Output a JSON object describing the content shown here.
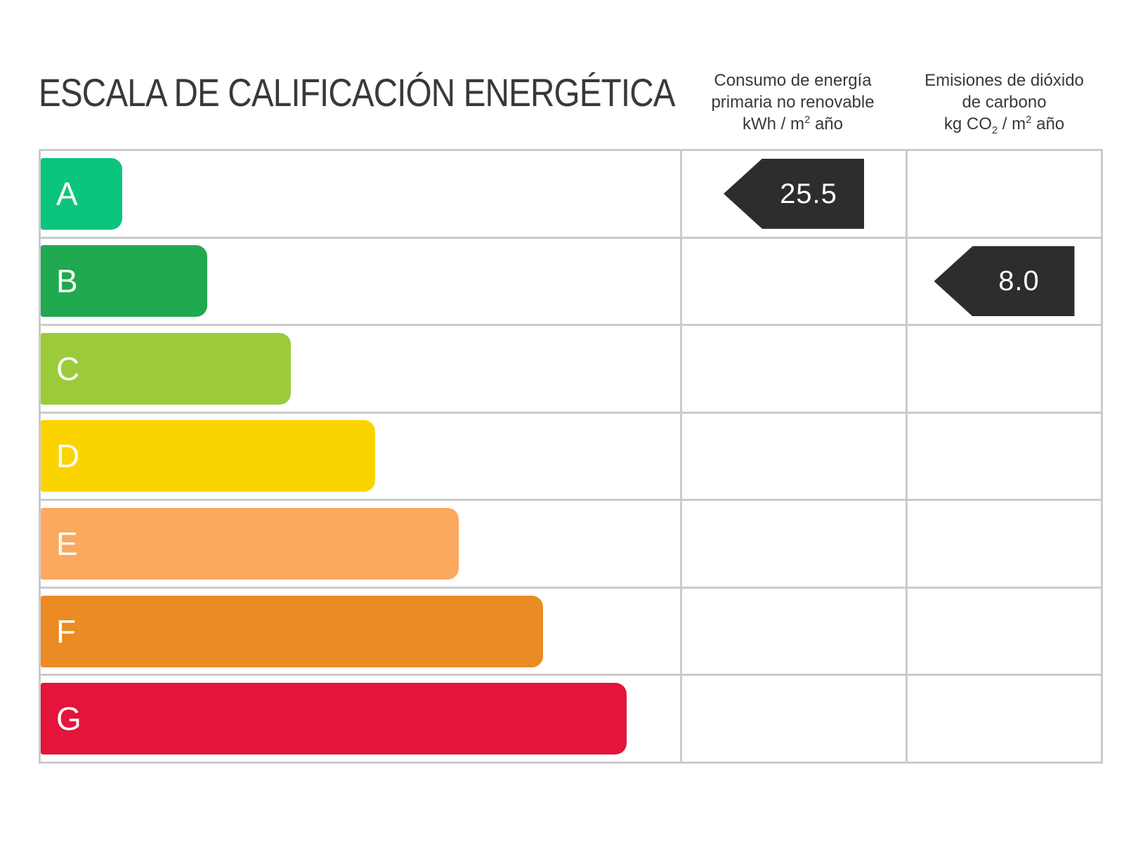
{
  "page": {
    "title": "ESCALA DE CALIFICACIÓN ENERGÉTICA",
    "background": "#ffffff"
  },
  "headers": {
    "consumption": {
      "line1": "Consumo de energía",
      "line2": "primaria no renovable",
      "unit_pre": "kWh / m",
      "unit_sup": "2",
      "unit_post": " año"
    },
    "emissions": {
      "line1": "Emisiones de dióxido",
      "line2": "de carbono",
      "unit_pre": "kg CO",
      "unit_sub": "2",
      "unit_mid": " / m",
      "unit_sup": "2",
      "unit_post": " año"
    }
  },
  "scale": {
    "rows": [
      {
        "grade": "A",
        "color": "#0cc57d",
        "width": "12.8%"
      },
      {
        "grade": "B",
        "color": "#20a94e",
        "width": "26.0%"
      },
      {
        "grade": "C",
        "color": "#9bcb3a",
        "width": "39.1%"
      },
      {
        "grade": "D",
        "color": "#fbd400",
        "width": "52.3%"
      },
      {
        "grade": "E",
        "color": "#fca85e",
        "width": "65.4%"
      },
      {
        "grade": "F",
        "color": "#ea8b23",
        "width": "78.6%"
      },
      {
        "grade": "G",
        "color": "#e4143b",
        "width": "91.7%"
      }
    ]
  },
  "indicators": {
    "consumption": {
      "value": "25.5",
      "grade": "A"
    },
    "emissions": {
      "value": "8.0",
      "grade": "B"
    }
  },
  "colors": {
    "arrow": "#2c2d2d",
    "grid": "#cbcbcb",
    "text": "#37393c"
  },
  "chart_data": {
    "type": "bar",
    "title": "ESCALA DE CALIFICACIÓN ENERGÉTICA",
    "categories": [
      "A",
      "B",
      "C",
      "D",
      "E",
      "F",
      "G"
    ],
    "bar_relative_widths_pct": [
      12.8,
      26.0,
      39.1,
      52.3,
      65.4,
      78.6,
      91.7
    ],
    "bar_colors": [
      "#0cc57d",
      "#20a94e",
      "#9bcb3a",
      "#fbd400",
      "#fca85e",
      "#ea8b23",
      "#e4143b"
    ],
    "series": [
      {
        "name": "Consumo de energía primaria no renovable (kWh / m² año)",
        "grade": "A",
        "value": 25.5
      },
      {
        "name": "Emisiones de dióxido de carbono (kg CO₂ / m² año)",
        "grade": "B",
        "value": 8.0
      }
    ],
    "grid": true,
    "legend_position": "none"
  }
}
